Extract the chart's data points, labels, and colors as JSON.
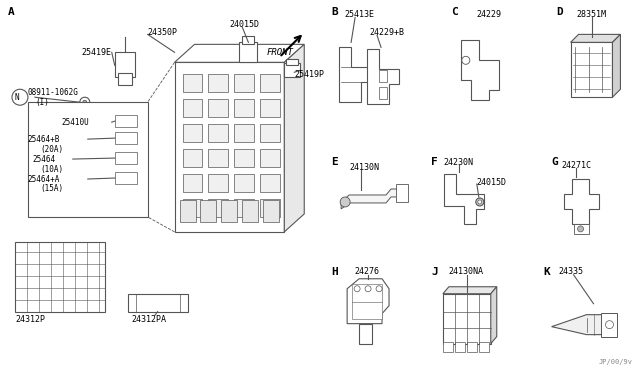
{
  "title": "",
  "bg_color": "#ffffff",
  "line_color": "#555555",
  "text_color": "#000000",
  "section_labels": [
    "A",
    "B",
    "C",
    "D",
    "E",
    "F",
    "G",
    "H",
    "J",
    "K"
  ],
  "part_numbers": {
    "main_section": [
      "25419E",
      "24350P",
      "24015D",
      "25419P",
      "08911-1062G",
      "25410U",
      "25464+B",
      "(20A)",
      "25464",
      "(10A)",
      "25464+A",
      "(15A)",
      "24312P",
      "24312PA"
    ],
    "B": [
      "25413E",
      "24229+B"
    ],
    "C": [
      "24229"
    ],
    "D": [
      "28351M"
    ],
    "E": [
      "24130N"
    ],
    "F": [
      "24230N",
      "24015D"
    ],
    "G": [
      "24271C"
    ],
    "H": [
      "24276"
    ],
    "J": [
      "24130NA"
    ],
    "K": [
      "24335"
    ]
  },
  "footer_text": "JP/00/9v",
  "front_label": "FRONT",
  "footer_color": "#888888"
}
